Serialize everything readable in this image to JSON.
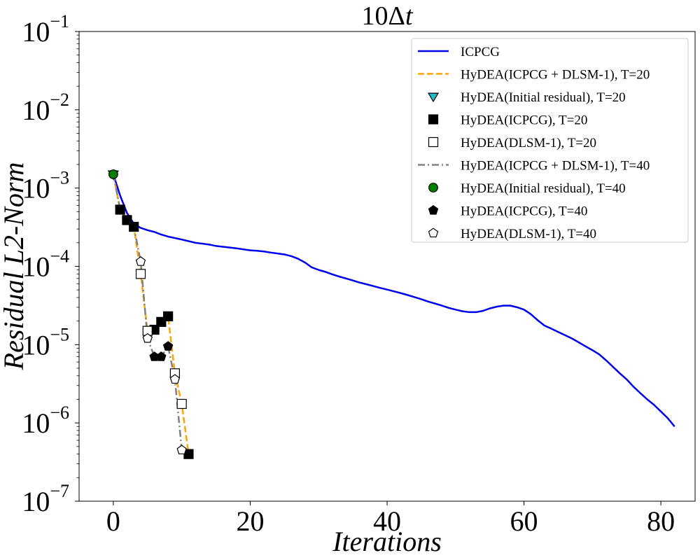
{
  "chart_data": {
    "type": "line",
    "title_main": "10Δ",
    "title_var": "t",
    "xlabel": "Iterations",
    "ylabel": "Residual L2-Norm",
    "y_scale": "log",
    "xlim": [
      -5,
      85
    ],
    "ylim_exp": [
      -7,
      -1
    ],
    "x_ticks": [
      0,
      20,
      40,
      60,
      80
    ],
    "y_ticks": [
      {
        "exp": -7,
        "base": "10",
        "sup": "−7"
      },
      {
        "exp": -6,
        "base": "10",
        "sup": "−6"
      },
      {
        "exp": -5,
        "base": "10",
        "sup": "−5"
      },
      {
        "exp": -4,
        "base": "10",
        "sup": "−4"
      },
      {
        "exp": -3,
        "base": "10",
        "sup": "−3"
      },
      {
        "exp": -2,
        "base": "10",
        "sup": "−2"
      },
      {
        "exp": -1,
        "base": "10",
        "sup": "−1"
      }
    ],
    "legend_position": "top-right",
    "series": [
      {
        "name": "ICPCG",
        "kind": "line",
        "color": "#0000ee",
        "dash": "solid",
        "x": [
          0,
          1,
          2,
          3,
          4,
          5,
          6,
          7,
          8,
          9,
          10,
          11,
          12,
          13,
          14,
          15,
          16,
          17,
          18,
          19,
          20,
          21,
          22,
          23,
          24,
          25,
          26,
          27,
          28,
          29,
          30,
          31,
          32,
          33,
          34,
          35,
          36,
          37,
          38,
          39,
          40,
          41,
          42,
          43,
          44,
          45,
          46,
          47,
          48,
          49,
          50,
          51,
          52,
          53,
          54,
          55,
          56,
          57,
          58,
          59,
          60,
          61,
          62,
          63,
          64,
          65,
          66,
          67,
          68,
          69,
          70,
          71,
          72,
          73,
          74,
          75,
          76,
          77,
          78,
          79,
          80,
          81,
          82
        ],
        "y": [
          0.0015,
          0.0008,
          0.00048,
          0.00035,
          0.00031,
          0.00029,
          0.000275,
          0.000255,
          0.00024,
          0.00023,
          0.00022,
          0.00021,
          0.0002,
          0.000195,
          0.00019,
          0.000182,
          0.000178,
          0.000174,
          0.00017,
          0.000165,
          0.00016,
          0.000158,
          0.000155,
          0.00015,
          0.000146,
          0.000142,
          0.000135,
          0.000125,
          0.000112,
          9.7e-05,
          9e-05,
          8.5e-05,
          7.9e-05,
          7.4e-05,
          7e-05,
          6.6e-05,
          6.2e-05,
          5.9e-05,
          5.6e-05,
          5.3e-05,
          5.05e-05,
          4.8e-05,
          4.55e-05,
          4.3e-05,
          4.05e-05,
          3.8e-05,
          3.55e-05,
          3.35e-05,
          3.15e-05,
          2.95e-05,
          2.8e-05,
          2.67e-05,
          2.6e-05,
          2.6e-05,
          2.7e-05,
          2.9e-05,
          3.05e-05,
          3.15e-05,
          3.15e-05,
          3e-05,
          2.8e-05,
          2.45e-05,
          2.05e-05,
          1.75e-05,
          1.6e-05,
          1.45e-05,
          1.32e-05,
          1.2e-05,
          1.07e-05,
          9.5e-06,
          8.5e-06,
          7.5e-06,
          6.3e-06,
          5.2e-06,
          4.3e-06,
          3.6e-06,
          2.9e-06,
          2.4e-06,
          2e-06,
          1.7e-06,
          1.4e-06,
          1.15e-06,
          9e-07
        ]
      },
      {
        "name": "HyDEA(ICPCG + DLSM-1), T=20",
        "kind": "line",
        "color": "#ffa500",
        "dash": "dashed",
        "x": [
          0,
          1,
          2,
          3,
          4,
          5,
          6,
          7,
          8,
          9,
          10,
          11
        ],
        "y": [
          0.0015,
          0.00053,
          0.00039,
          0.00032,
          8e-05,
          1.5e-05,
          1.55e-05,
          1.95e-05,
          2.3e-05,
          4.3e-06,
          1.75e-06,
          4e-07
        ]
      },
      {
        "name": "HyDEA(Initial residual), T=20",
        "kind": "marker",
        "marker": "triangle-down",
        "color": "#1fbfbf",
        "x": [
          0
        ],
        "y": [
          0.0015
        ]
      },
      {
        "name": "HyDEA(ICPCG), T=20",
        "kind": "marker",
        "marker": "square-filled",
        "color": "#000000",
        "x": [
          1,
          2,
          3,
          6,
          7,
          8,
          11
        ],
        "y": [
          0.00053,
          0.00039,
          0.00032,
          1.55e-05,
          1.95e-05,
          2.3e-05,
          4e-07
        ]
      },
      {
        "name": "HyDEA(DLSM-1), T=20",
        "kind": "marker",
        "marker": "square-open",
        "color": "#000000",
        "x": [
          4,
          5,
          9,
          10
        ],
        "y": [
          8e-05,
          1.5e-05,
          4.3e-06,
          1.75e-06
        ]
      },
      {
        "name": "HyDEA(ICPCG + DLSM-1), T=40",
        "kind": "line",
        "color": "#808080",
        "dash": "dashdot",
        "x": [
          0,
          1,
          2,
          3,
          4,
          5,
          6,
          7,
          8,
          9,
          10
        ],
        "y": [
          0.0015,
          0.00053,
          0.00039,
          0.00032,
          0.000115,
          1.2e-05,
          7e-06,
          7e-06,
          9.5e-06,
          3.6e-06,
          4.5e-07
        ]
      },
      {
        "name": "HyDEA(Initial residual), T=40",
        "kind": "marker",
        "marker": "circle",
        "color": "#008000",
        "x": [
          0
        ],
        "y": [
          0.0015
        ]
      },
      {
        "name": "HyDEA(ICPCG), T=40",
        "kind": "marker",
        "marker": "pentagon-filled",
        "color": "#000000",
        "x": [
          6,
          7,
          8
        ],
        "y": [
          7e-06,
          7e-06,
          9.5e-06
        ]
      },
      {
        "name": "HyDEA(DLSM-1), T=40",
        "kind": "marker",
        "marker": "pentagon-open",
        "color": "#000000",
        "x": [
          4,
          5,
          9,
          10
        ],
        "y": [
          0.000115,
          1.2e-05,
          3.6e-06,
          4.5e-07
        ]
      }
    ]
  }
}
